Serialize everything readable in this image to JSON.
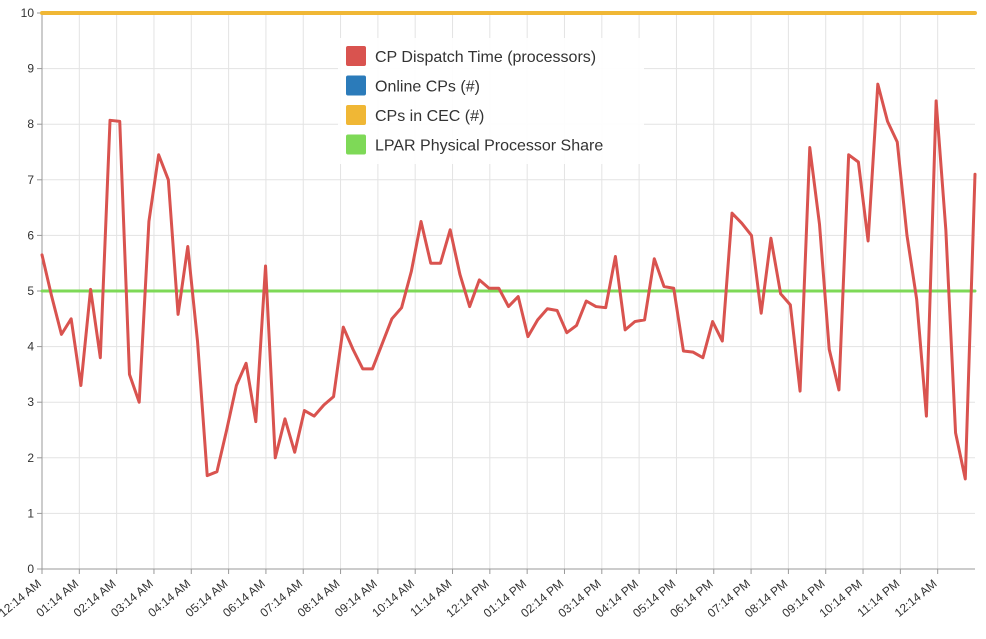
{
  "chart_data": {
    "type": "line",
    "title": "",
    "xlabel": "",
    "ylabel": "",
    "ylim": [
      0,
      10
    ],
    "yticks": [
      0,
      1,
      2,
      3,
      4,
      5,
      6,
      7,
      8,
      9,
      10
    ],
    "grid": true,
    "legend_position": "top-center",
    "x_tick_labels": [
      "12:14 AM",
      "01:14 AM",
      "02:14 AM",
      "03:14 AM",
      "04:14 AM",
      "05:14 AM",
      "06:14 AM",
      "07:14 AM",
      "08:14 AM",
      "09:14 AM",
      "10:14 AM",
      "11:14 AM",
      "12:14 PM",
      "01:14 PM",
      "02:14 PM",
      "03:14 PM",
      "04:14 PM",
      "05:14 PM",
      "06:14 PM",
      "07:14 PM",
      "08:14 PM",
      "09:14 PM",
      "10:14 PM",
      "11:14 PM",
      "12:14 AM"
    ],
    "series": [
      {
        "name": "CP Dispatch Time (processors)",
        "color": "#d9534f",
        "values": [
          5.65,
          4.9,
          4.22,
          4.5,
          3.3,
          5.03,
          3.8,
          8.07,
          8.05,
          3.5,
          3.0,
          6.25,
          7.45,
          7.0,
          4.58,
          5.8,
          4.1,
          1.68,
          1.75,
          2.5,
          3.3,
          3.7,
          2.65,
          5.45,
          2.0,
          2.7,
          2.1,
          2.85,
          2.75,
          2.95,
          3.1,
          4.35,
          3.95,
          3.6,
          3.6,
          4.05,
          4.5,
          4.7,
          5.35,
          6.25,
          5.5,
          5.5,
          6.1,
          5.3,
          4.72,
          5.2,
          5.05,
          5.05,
          4.72,
          4.9,
          4.18,
          4.48,
          4.68,
          4.65,
          4.25,
          4.38,
          4.82,
          4.72,
          4.7,
          5.62,
          4.3,
          4.45,
          4.48,
          5.58,
          5.08,
          5.05,
          3.92,
          3.9,
          3.8,
          4.45,
          4.1,
          6.4,
          6.22,
          6.0,
          4.6,
          5.95,
          4.95,
          4.75,
          3.2,
          7.58,
          6.2,
          3.95,
          3.22,
          7.45,
          7.32,
          5.9,
          8.72,
          8.05,
          7.68,
          6.0,
          4.85,
          2.75,
          8.42,
          6.1,
          2.45,
          1.62,
          7.1
        ]
      },
      {
        "name": "Online CPs (#)",
        "color": "#2b7bba",
        "values": [
          10,
          10
        ]
      },
      {
        "name": "CPs in CEC (#)",
        "color": "#f0b735",
        "values": [
          10,
          10
        ]
      },
      {
        "name": "LPAR Physical Processor Share",
        "color": "#7ed957",
        "values": [
          5,
          5
        ]
      }
    ]
  }
}
